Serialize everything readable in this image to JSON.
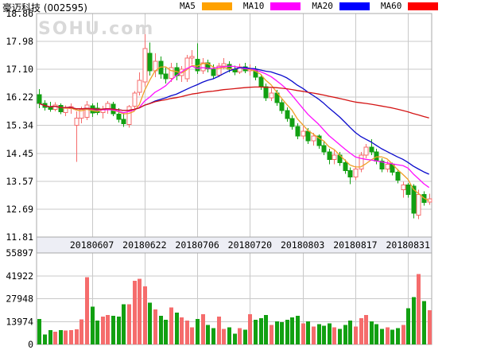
{
  "header": {
    "title": "豪迈科技 (002595)",
    "legend": [
      {
        "label": "MA5",
        "swatch_color": "#ffa200",
        "line_color": "#f0a028"
      },
      {
        "label": "MA10",
        "swatch_color": "#ff00ff",
        "line_color": "#ff10ff"
      },
      {
        "label": "MA20",
        "swatch_color": "#0000ff",
        "line_color": "#0a0acc"
      },
      {
        "label": "MA60",
        "swatch_color": "#ff0000",
        "line_color": "#d41414"
      }
    ]
  },
  "watermark": "SOHU.com",
  "chart_data": {
    "type": "candlestick",
    "title": "豪迈科技 (002595) daily K-line with moving averages and volume",
    "price_ticks": [
      "18.86",
      "17.98",
      "17.10",
      "16.22",
      "15.34",
      "14.45",
      "13.57",
      "12.69",
      "11.81"
    ],
    "price_range": [
      11.81,
      18.86
    ],
    "volume_ticks": [
      "55897",
      "41922",
      "27948",
      "13974",
      "0"
    ],
    "volume_max": 55897,
    "x_tick_labels": [
      "20180607",
      "20180622",
      "20180706",
      "20180720",
      "20180803",
      "20180817",
      "20180831"
    ],
    "x_tick_indices": [
      10,
      20,
      30,
      40,
      50,
      60,
      70
    ],
    "ma_windows": [
      5,
      10,
      20,
      60
    ],
    "legend_position": "top",
    "grid": true,
    "colors": {
      "up": "#f56c6c",
      "down": "#12a012",
      "up_fill": "#ffffff",
      "grid": "#c9c9c9",
      "border": "#a8a8a8",
      "band_bg": "#edeef5",
      "text": "#000000",
      "watermark": "#d9d9d9"
    },
    "candles": [
      [
        16.3,
        16.48,
        15.88,
        16.02,
        15500
      ],
      [
        16.02,
        16.12,
        15.8,
        15.9,
        6000
      ],
      [
        15.9,
        16.08,
        15.76,
        15.84,
        8700
      ],
      [
        15.84,
        16.06,
        15.78,
        15.98,
        7800
      ],
      [
        15.96,
        16.02,
        15.68,
        15.76,
        8800
      ],
      [
        15.74,
        15.96,
        15.62,
        15.88,
        8500
      ],
      [
        15.86,
        16.02,
        15.7,
        15.92,
        8800
      ],
      [
        15.34,
        15.78,
        14.18,
        15.56,
        9200
      ],
      [
        15.56,
        15.92,
        15.4,
        15.84,
        15300
      ],
      [
        15.58,
        16.1,
        15.5,
        15.98,
        41000
      ],
      [
        15.95,
        16.02,
        15.6,
        15.72,
        23000
      ],
      [
        15.88,
        16.05,
        15.66,
        15.74,
        14500
      ],
      [
        15.74,
        15.95,
        15.55,
        15.85,
        17000
      ],
      [
        15.85,
        16.1,
        15.7,
        16.02,
        18000
      ],
      [
        16.0,
        16.08,
        15.62,
        15.7,
        17500
      ],
      [
        15.68,
        15.88,
        15.42,
        15.52,
        17000
      ],
      [
        15.52,
        15.72,
        15.28,
        15.38,
        24500
      ],
      [
        15.36,
        15.98,
        15.26,
        15.92,
        24500
      ],
      [
        15.94,
        16.42,
        15.85,
        16.35,
        39000
      ],
      [
        16.38,
        17.0,
        16.28,
        16.75,
        40000
      ],
      [
        16.7,
        18.36,
        16.55,
        17.75,
        35500
      ],
      [
        17.6,
        17.95,
        16.9,
        17.05,
        25500
      ],
      [
        17.05,
        17.6,
        16.85,
        17.35,
        21500
      ],
      [
        17.35,
        17.5,
        16.8,
        16.95,
        17500
      ],
      [
        16.95,
        17.15,
        16.65,
        16.8,
        15000
      ],
      [
        16.82,
        17.3,
        16.7,
        17.15,
        22500
      ],
      [
        17.15,
        17.3,
        16.75,
        16.9,
        19500
      ],
      [
        16.9,
        17.2,
        16.7,
        17.1,
        16500
      ],
      [
        16.8,
        17.55,
        16.7,
        17.45,
        14500
      ],
      [
        17.45,
        17.7,
        17.25,
        17.5,
        10500
      ],
      [
        17.42,
        17.92,
        16.95,
        17.05,
        15500
      ],
      [
        17.05,
        17.45,
        16.95,
        17.3,
        18500
      ],
      [
        17.3,
        17.4,
        17.0,
        17.12,
        12000
      ],
      [
        17.1,
        17.25,
        16.8,
        16.9,
        10000
      ],
      [
        16.92,
        17.3,
        16.85,
        17.2,
        17000
      ],
      [
        17.2,
        17.45,
        17.1,
        17.28,
        9500
      ],
      [
        17.25,
        17.35,
        17.0,
        17.1,
        10500
      ],
      [
        17.1,
        17.22,
        16.92,
        17.02,
        6500
      ],
      [
        17.02,
        17.28,
        16.95,
        17.18,
        10000
      ],
      [
        17.18,
        17.3,
        16.98,
        17.05,
        9000
      ],
      [
        17.05,
        17.25,
        16.9,
        17.12,
        18500
      ],
      [
        17.1,
        17.2,
        16.75,
        16.85,
        15000
      ],
      [
        16.85,
        16.95,
        16.45,
        16.55,
        16000
      ],
      [
        16.55,
        16.65,
        16.1,
        16.2,
        18000
      ],
      [
        16.2,
        16.5,
        16.1,
        16.35,
        12000
      ],
      [
        16.35,
        16.45,
        15.95,
        16.05,
        14000
      ],
      [
        16.05,
        16.15,
        15.7,
        15.8,
        13500
      ],
      [
        15.8,
        15.9,
        15.45,
        15.55,
        15000
      ],
      [
        15.55,
        15.65,
        15.2,
        15.3,
        16500
      ],
      [
        15.3,
        15.4,
        14.9,
        15.0,
        17500
      ],
      [
        15.0,
        15.3,
        14.9,
        15.15,
        13000
      ],
      [
        15.15,
        15.25,
        14.75,
        14.85,
        14000
      ],
      [
        14.85,
        15.1,
        14.7,
        15.0,
        11000
      ],
      [
        15.0,
        15.05,
        14.6,
        14.7,
        12500
      ],
      [
        14.7,
        14.85,
        14.4,
        14.5,
        11500
      ],
      [
        14.5,
        14.6,
        14.1,
        14.25,
        13000
      ],
      [
        14.25,
        14.55,
        14.1,
        14.4,
        10500
      ],
      [
        14.4,
        14.5,
        14.05,
        14.15,
        9500
      ],
      [
        14.15,
        14.25,
        13.8,
        13.9,
        12000
      ],
      [
        13.9,
        14.0,
        13.48,
        13.7,
        14500
      ],
      [
        13.7,
        14.05,
        13.6,
        13.95,
        11000
      ],
      [
        13.95,
        14.5,
        13.85,
        14.4,
        16000
      ],
      [
        14.4,
        14.75,
        14.3,
        14.65,
        18000
      ],
      [
        14.65,
        14.9,
        14.4,
        14.5,
        14000
      ],
      [
        14.5,
        14.6,
        14.1,
        14.2,
        12500
      ],
      [
        14.2,
        14.3,
        13.85,
        13.95,
        9500
      ],
      [
        13.95,
        14.2,
        13.85,
        14.1,
        10500
      ],
      [
        14.1,
        14.15,
        13.75,
        13.85,
        9000
      ],
      [
        13.85,
        13.95,
        13.5,
        13.6,
        10000
      ],
      [
        13.3,
        13.55,
        13.05,
        13.45,
        12000
      ],
      [
        13.45,
        13.52,
        13.05,
        13.15,
        22000
      ],
      [
        13.42,
        13.48,
        12.4,
        12.56,
        29000
      ],
      [
        12.5,
        13.3,
        12.38,
        13.15,
        43000
      ],
      [
        13.15,
        13.25,
        12.8,
        12.9,
        26500
      ],
      [
        12.92,
        13.18,
        12.82,
        13.02,
        21000
      ]
    ]
  }
}
